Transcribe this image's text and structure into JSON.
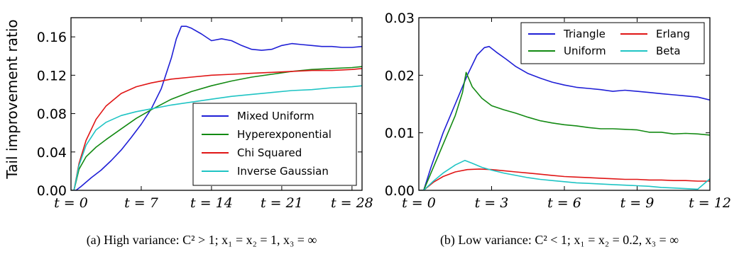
{
  "ylabel": "Tail improvement ratio",
  "chart_data": [
    {
      "type": "line",
      "xlim": [
        0,
        29
      ],
      "ylim": [
        0,
        0.18
      ],
      "yticks": [
        0,
        0.04,
        0.08,
        0.12,
        0.16
      ],
      "ytick_labels": [
        "0.00",
        "0.04",
        "0.08",
        "0.12",
        "0.16"
      ],
      "xticks": [
        0,
        7,
        14,
        21,
        28
      ],
      "xtick_labels": [
        "t = 0",
        "t = 7",
        "t = 14",
        "t = 21",
        "t = 28"
      ],
      "legend_position": "lower-right",
      "caption": "(a) High variance: C² > 1; x₁ = x₂ = 1, x₃ = ∞",
      "series": [
        {
          "name": "Mixed Uniform",
          "color": "#1f1fd6",
          "x": [
            0,
            0.5,
            1,
            2,
            3,
            4,
            5,
            6,
            7,
            8,
            9,
            10,
            10.5,
            11,
            11.5,
            12,
            13,
            14,
            15,
            16,
            17,
            18,
            19,
            20,
            21,
            22,
            23,
            24,
            25,
            26,
            27,
            28,
            29
          ],
          "y": [
            0,
            0.0,
            0.004,
            0.013,
            0.021,
            0.031,
            0.042,
            0.055,
            0.069,
            0.085,
            0.106,
            0.138,
            0.158,
            0.171,
            0.171,
            0.169,
            0.163,
            0.156,
            0.158,
            0.156,
            0.151,
            0.147,
            0.146,
            0.147,
            0.151,
            0.153,
            0.152,
            0.151,
            0.15,
            0.15,
            0.149,
            0.149,
            0.15
          ]
        },
        {
          "name": "Hyperexponential",
          "color": "#138a13",
          "x": [
            0,
            0.3,
            0.8,
            1.5,
            2.5,
            3.5,
            5,
            6.5,
            8,
            10,
            12,
            14,
            16,
            18,
            20,
            22,
            24,
            26,
            28,
            29
          ],
          "y": [
            0,
            0.0,
            0.022,
            0.035,
            0.045,
            0.053,
            0.064,
            0.075,
            0.084,
            0.095,
            0.103,
            0.109,
            0.114,
            0.118,
            0.121,
            0.124,
            0.126,
            0.127,
            0.128,
            0.129
          ]
        },
        {
          "name": "Chi Squared",
          "color": "#e01515",
          "x": [
            0,
            0.3,
            0.8,
            1.5,
            2.5,
            3.5,
            5,
            6.5,
            8,
            10,
            12,
            14,
            16,
            18,
            20,
            22,
            24,
            26,
            28,
            29
          ],
          "y": [
            0,
            0.0,
            0.028,
            0.052,
            0.074,
            0.088,
            0.101,
            0.108,
            0.112,
            0.116,
            0.118,
            0.12,
            0.121,
            0.122,
            0.123,
            0.124,
            0.125,
            0.125,
            0.126,
            0.127
          ]
        },
        {
          "name": "Inverse Gaussian",
          "color": "#1fc4c4",
          "x": [
            0,
            0.3,
            0.8,
            1.5,
            2.5,
            3.5,
            5,
            6.5,
            8,
            10,
            12,
            14,
            16,
            18,
            20,
            22,
            24,
            26,
            28,
            29
          ],
          "y": [
            0,
            0.0,
            0.026,
            0.047,
            0.063,
            0.071,
            0.078,
            0.082,
            0.085,
            0.089,
            0.092,
            0.095,
            0.098,
            0.1,
            0.102,
            0.104,
            0.105,
            0.107,
            0.108,
            0.109
          ]
        }
      ]
    },
    {
      "type": "line",
      "xlim": [
        0,
        12
      ],
      "ylim": [
        0,
        0.03
      ],
      "yticks": [
        0,
        0.01,
        0.02,
        0.03
      ],
      "ytick_labels": [
        "0.00",
        "0.01",
        "0.02",
        "0.03"
      ],
      "xticks": [
        0,
        3,
        6,
        9,
        12
      ],
      "xtick_labels": [
        "t = 0",
        "t = 3",
        "t = 6",
        "t = 9",
        "t = 12"
      ],
      "legend_position": "top-right",
      "caption": "(b) Low variance: C² < 1; x₁ = x₂ = 0.2, x₃ = ∞",
      "series": [
        {
          "name": "Triangle",
          "color": "#1f1fd6",
          "x": [
            0,
            0.2,
            0.5,
            1,
            1.5,
            2,
            2.4,
            2.7,
            2.9,
            3.2,
            3.6,
            4,
            4.5,
            5,
            5.5,
            6,
            6.5,
            7,
            7.5,
            8,
            8.5,
            9,
            9.5,
            10,
            10.5,
            11,
            11.5,
            12
          ],
          "y": [
            0,
            0.0,
            0.004,
            0.01,
            0.015,
            0.02,
            0.0235,
            0.0248,
            0.025,
            0.024,
            0.0228,
            0.0215,
            0.0203,
            0.0195,
            0.0188,
            0.0183,
            0.0179,
            0.0177,
            0.0175,
            0.0172,
            0.0174,
            0.0172,
            0.017,
            0.0168,
            0.0166,
            0.0164,
            0.0162,
            0.0157
          ]
        },
        {
          "name": "Uniform",
          "color": "#138a13",
          "x": [
            0,
            0.2,
            0.5,
            1,
            1.5,
            1.8,
            1.95,
            2.2,
            2.6,
            3,
            3.5,
            4,
            4.5,
            5,
            5.5,
            6,
            6.5,
            7,
            7.5,
            8,
            8.5,
            9,
            9.5,
            10,
            10.5,
            11,
            11.5,
            12
          ],
          "y": [
            0,
            0.0,
            0.003,
            0.008,
            0.013,
            0.017,
            0.0205,
            0.018,
            0.016,
            0.0147,
            0.014,
            0.0134,
            0.0127,
            0.0121,
            0.0117,
            0.0114,
            0.0112,
            0.0109,
            0.0107,
            0.0107,
            0.0106,
            0.0105,
            0.0101,
            0.0101,
            0.0098,
            0.0099,
            0.0098,
            0.0096
          ]
        },
        {
          "name": "Erlang",
          "color": "#e01515",
          "x": [
            0,
            0.2,
            0.6,
            1,
            1.5,
            2,
            2.5,
            3,
            3.5,
            4,
            4.5,
            5,
            5.5,
            6,
            6.5,
            7,
            7.5,
            8,
            8.5,
            9,
            9.5,
            10,
            10.5,
            11,
            11.5,
            12
          ],
          "y": [
            0,
            0.0,
            0.0014,
            0.0024,
            0.0032,
            0.0036,
            0.0037,
            0.0036,
            0.0034,
            0.0032,
            0.003,
            0.0028,
            0.0026,
            0.0024,
            0.0023,
            0.0022,
            0.0021,
            0.002,
            0.0019,
            0.0019,
            0.0018,
            0.0018,
            0.0017,
            0.0017,
            0.0016,
            0.0016
          ]
        },
        {
          "name": "Beta",
          "color": "#1fc4c4",
          "x": [
            0,
            0.2,
            0.6,
            1,
            1.5,
            1.9,
            2.2,
            2.6,
            3,
            3.5,
            4,
            4.5,
            5,
            5.5,
            6,
            6.5,
            7,
            7.5,
            8,
            8.5,
            9,
            9.5,
            10,
            10.5,
            11,
            11.5,
            12
          ],
          "y": [
            0,
            0.0,
            0.0016,
            0.003,
            0.0044,
            0.0052,
            0.0047,
            0.004,
            0.0035,
            0.003,
            0.0026,
            0.0022,
            0.0019,
            0.0017,
            0.0015,
            0.0013,
            0.0012,
            0.0011,
            0.001,
            0.0009,
            0.0008,
            0.0007,
            0.0005,
            0.0004,
            0.0003,
            0.0002,
            0.002
          ]
        }
      ]
    }
  ]
}
